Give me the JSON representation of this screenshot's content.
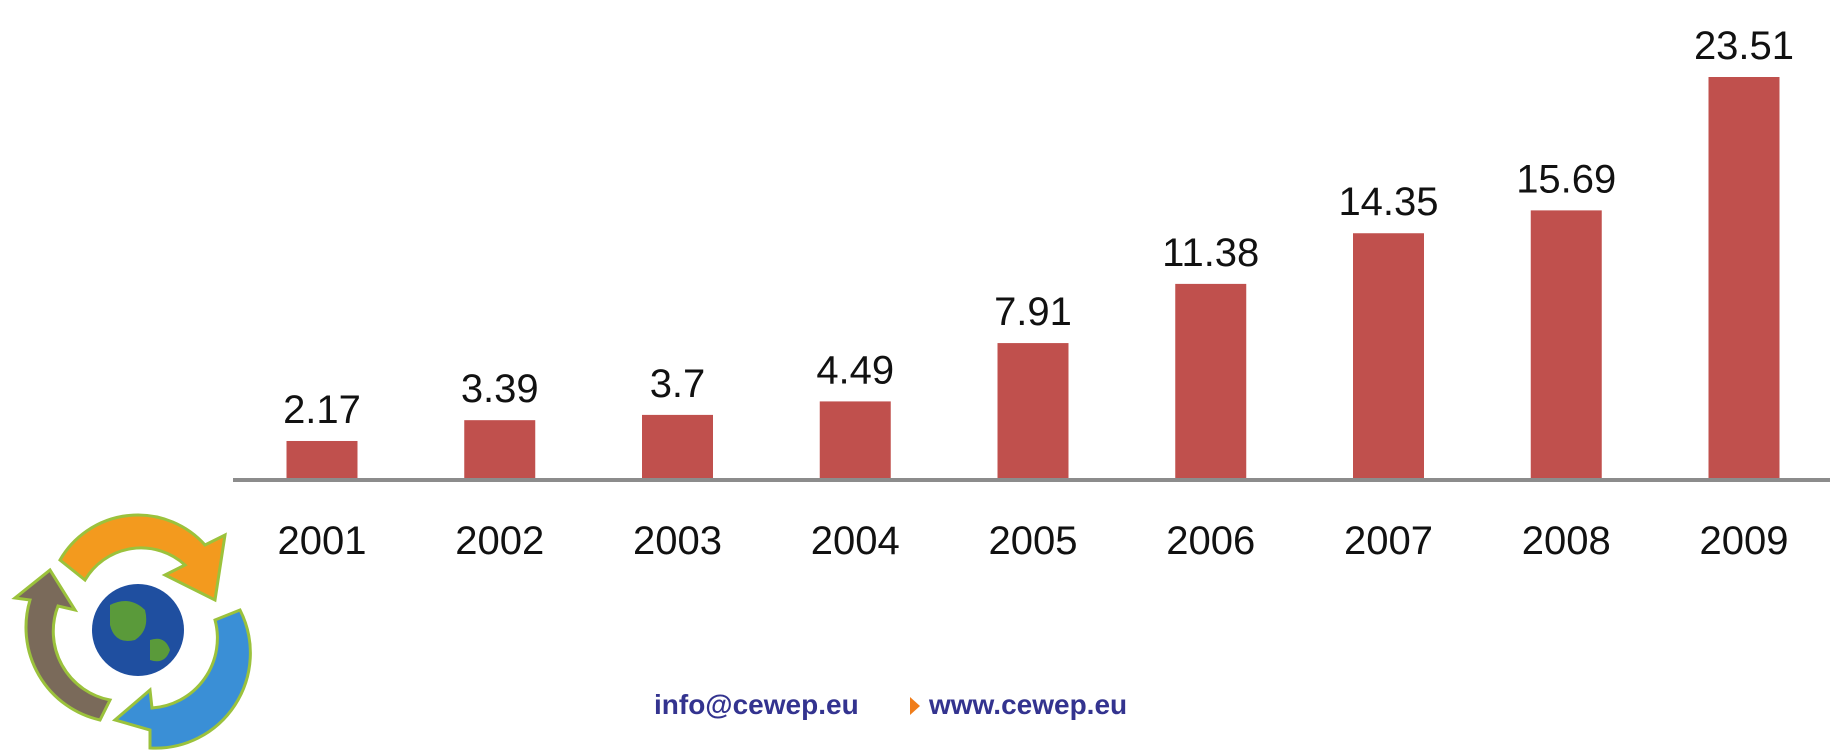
{
  "chart_data": {
    "type": "bar",
    "categories": [
      "2001",
      "2002",
      "2003",
      "2004",
      "2005",
      "2006",
      "2007",
      "2008",
      "2009"
    ],
    "values": [
      2.17,
      3.39,
      3.7,
      4.49,
      7.91,
      11.38,
      14.35,
      15.69,
      23.51
    ],
    "color": "#c0504d"
  },
  "footer": {
    "email": "info@cewep.eu",
    "website": "www.cewep.eu"
  }
}
